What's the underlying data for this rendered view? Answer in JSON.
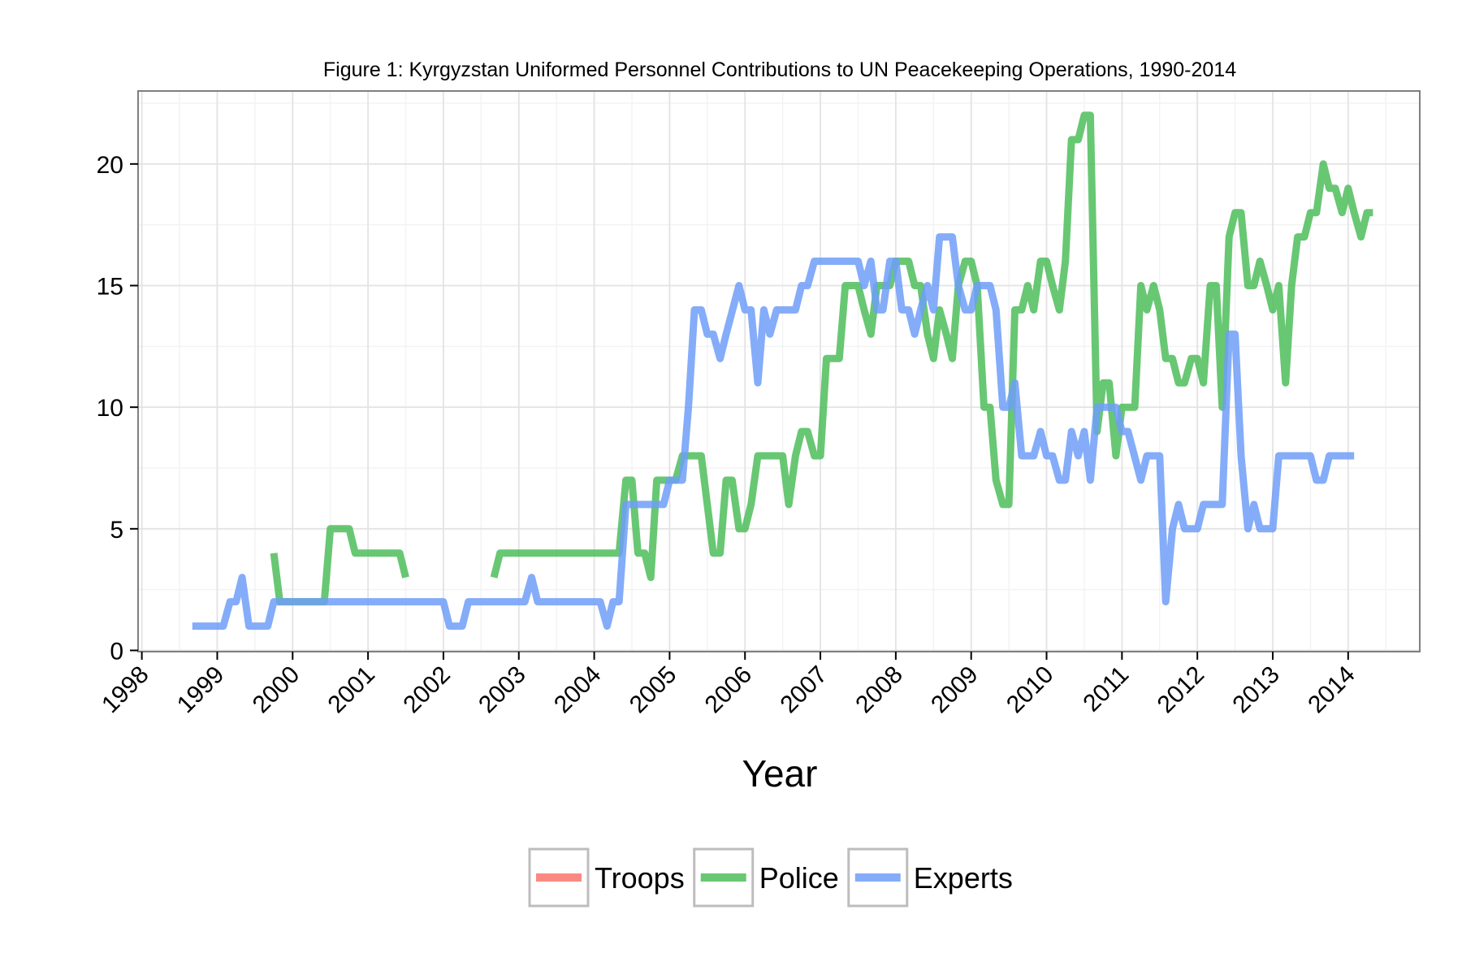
{
  "chart_data": {
    "type": "line",
    "title": "Figure 1: Kyrgyzstan Uniformed Personnel Contributions to UN Peacekeeping Operations, 1990-2014",
    "xlabel": "Year",
    "ylabel": "",
    "xlim": [
      1997.95,
      2014.95
    ],
    "ylim": [
      -0.05,
      23.0
    ],
    "x_ticks": [
      1998,
      1999,
      2000,
      2001,
      2002,
      2003,
      2004,
      2005,
      2006,
      2007,
      2008,
      2009,
      2010,
      2011,
      2012,
      2013,
      2014
    ],
    "x_tick_labels": [
      "1998",
      "1999",
      "2000",
      "2001",
      "2002",
      "2003",
      "2004",
      "2005",
      "2006",
      "2007",
      "2008",
      "2009",
      "2010",
      "2011",
      "2012",
      "2013",
      "2014"
    ],
    "y_ticks": [
      0,
      5,
      10,
      15,
      20
    ],
    "y_tick_labels": [
      "0",
      "5",
      "10",
      "15",
      "20"
    ],
    "grid": true,
    "legend_position": "bottom",
    "series": [
      {
        "name": "Troops",
        "color": "#F8766D",
        "segments": []
      },
      {
        "name": "Police",
        "color": "#4DBD5A",
        "segments": [
          [
            [
              1999.75,
              4
            ],
            [
              1999.83,
              2
            ],
            [
              2000.0,
              2
            ],
            [
              2000.42,
              2
            ],
            [
              2000.5,
              5
            ],
            [
              2000.75,
              5
            ],
            [
              2000.83,
              4
            ],
            [
              2001.42,
              4
            ],
            [
              2001.5,
              3
            ]
          ],
          [
            [
              2002.67,
              3
            ],
            [
              2002.75,
              4
            ],
            [
              2003.0,
              4
            ],
            [
              2004.33,
              4
            ],
            [
              2004.42,
              7
            ],
            [
              2004.5,
              7
            ],
            [
              2004.58,
              4
            ],
            [
              2004.67,
              4
            ],
            [
              2004.75,
              3
            ],
            [
              2004.83,
              7
            ],
            [
              2005.08,
              7
            ],
            [
              2005.17,
              8
            ],
            [
              2005.42,
              8
            ],
            [
              2005.58,
              4
            ],
            [
              2005.67,
              4
            ],
            [
              2005.75,
              7
            ],
            [
              2005.83,
              7
            ],
            [
              2005.92,
              5
            ],
            [
              2006.0,
              5
            ],
            [
              2006.08,
              6
            ],
            [
              2006.17,
              8
            ],
            [
              2006.5,
              8
            ],
            [
              2006.58,
              6
            ],
            [
              2006.67,
              8
            ],
            [
              2006.75,
              9
            ],
            [
              2006.83,
              9
            ],
            [
              2006.92,
              8
            ],
            [
              2007.0,
              8
            ],
            [
              2007.08,
              12
            ],
            [
              2007.25,
              12
            ],
            [
              2007.33,
              15
            ],
            [
              2007.5,
              15
            ],
            [
              2007.58,
              14
            ],
            [
              2007.67,
              13
            ],
            [
              2007.75,
              15
            ],
            [
              2007.92,
              15
            ],
            [
              2008.0,
              16
            ],
            [
              2008.17,
              16
            ],
            [
              2008.25,
              15
            ],
            [
              2008.33,
              15
            ],
            [
              2008.42,
              13
            ],
            [
              2008.5,
              12
            ],
            [
              2008.58,
              14
            ],
            [
              2008.67,
              13
            ],
            [
              2008.75,
              12
            ],
            [
              2008.83,
              15
            ],
            [
              2008.92,
              16
            ],
            [
              2009.0,
              16
            ],
            [
              2009.08,
              15
            ],
            [
              2009.17,
              10
            ],
            [
              2009.25,
              10
            ],
            [
              2009.33,
              7
            ],
            [
              2009.42,
              6
            ],
            [
              2009.5,
              6
            ],
            [
              2009.58,
              14
            ],
            [
              2009.67,
              14
            ],
            [
              2009.75,
              15
            ],
            [
              2009.83,
              14
            ],
            [
              2009.92,
              16
            ],
            [
              2010.0,
              16
            ],
            [
              2010.08,
              15
            ],
            [
              2010.17,
              14
            ],
            [
              2010.25,
              16
            ],
            [
              2010.33,
              21
            ],
            [
              2010.42,
              21
            ],
            [
              2010.5,
              22
            ],
            [
              2010.58,
              22
            ],
            [
              2010.67,
              9
            ],
            [
              2010.75,
              11
            ],
            [
              2010.83,
              11
            ],
            [
              2010.92,
              8
            ],
            [
              2011.0,
              10
            ],
            [
              2011.17,
              10
            ],
            [
              2011.25,
              15
            ],
            [
              2011.33,
              14
            ],
            [
              2011.42,
              15
            ],
            [
              2011.5,
              14
            ],
            [
              2011.58,
              12
            ],
            [
              2011.67,
              12
            ],
            [
              2011.75,
              11
            ],
            [
              2011.83,
              11
            ],
            [
              2011.92,
              12
            ],
            [
              2012.0,
              12
            ],
            [
              2012.08,
              11
            ],
            [
              2012.17,
              15
            ],
            [
              2012.25,
              15
            ],
            [
              2012.33,
              10
            ],
            [
              2012.42,
              17
            ],
            [
              2012.5,
              18
            ],
            [
              2012.58,
              18
            ],
            [
              2012.67,
              15
            ],
            [
              2012.75,
              15
            ],
            [
              2012.83,
              16
            ],
            [
              2012.92,
              15
            ],
            [
              2013.0,
              14
            ],
            [
              2013.08,
              15
            ],
            [
              2013.17,
              11
            ],
            [
              2013.25,
              15
            ],
            [
              2013.33,
              17
            ],
            [
              2013.42,
              17
            ],
            [
              2013.5,
              18
            ],
            [
              2013.58,
              18
            ],
            [
              2013.67,
              20
            ],
            [
              2013.75,
              19
            ],
            [
              2013.83,
              19
            ],
            [
              2013.92,
              18
            ],
            [
              2014.0,
              19
            ],
            [
              2014.08,
              18
            ],
            [
              2014.17,
              17
            ],
            [
              2014.25,
              18
            ],
            [
              2014.33,
              18
            ]
          ]
        ]
      },
      {
        "name": "Experts",
        "color": "#6F9EF8",
        "segments": [
          [
            [
              1998.67,
              1
            ],
            [
              1999.08,
              1
            ],
            [
              1999.17,
              2
            ],
            [
              1999.25,
              2
            ],
            [
              1999.33,
              3
            ],
            [
              1999.42,
              1
            ],
            [
              1999.67,
              1
            ],
            [
              1999.75,
              2
            ],
            [
              2001.92,
              2
            ],
            [
              2002.0,
              2
            ],
            [
              2002.08,
              1
            ],
            [
              2002.25,
              1
            ],
            [
              2002.33,
              2
            ],
            [
              2003.08,
              2
            ],
            [
              2003.17,
              3
            ],
            [
              2003.25,
              2
            ],
            [
              2004.08,
              2
            ],
            [
              2004.17,
              1
            ],
            [
              2004.25,
              2
            ],
            [
              2004.33,
              2
            ],
            [
              2004.42,
              6
            ],
            [
              2004.92,
              6
            ],
            [
              2005.0,
              7
            ],
            [
              2005.17,
              7
            ],
            [
              2005.25,
              10
            ],
            [
              2005.33,
              14
            ],
            [
              2005.42,
              14
            ],
            [
              2005.5,
              13
            ],
            [
              2005.58,
              13
            ],
            [
              2005.67,
              12
            ],
            [
              2005.75,
              13
            ],
            [
              2005.92,
              15
            ],
            [
              2006.0,
              14
            ],
            [
              2006.08,
              14
            ],
            [
              2006.17,
              11
            ],
            [
              2006.25,
              14
            ],
            [
              2006.33,
              13
            ],
            [
              2006.42,
              14
            ],
            [
              2006.67,
              14
            ],
            [
              2006.75,
              15
            ],
            [
              2006.83,
              15
            ],
            [
              2006.92,
              16
            ],
            [
              2007.5,
              16
            ],
            [
              2007.58,
              15
            ],
            [
              2007.67,
              16
            ],
            [
              2007.75,
              14
            ],
            [
              2007.83,
              14
            ],
            [
              2007.92,
              16
            ],
            [
              2008.0,
              16
            ],
            [
              2008.08,
              14
            ],
            [
              2008.17,
              14
            ],
            [
              2008.25,
              13
            ],
            [
              2008.33,
              14
            ],
            [
              2008.42,
              15
            ],
            [
              2008.5,
              14
            ],
            [
              2008.58,
              17
            ],
            [
              2008.75,
              17
            ],
            [
              2008.83,
              15
            ],
            [
              2008.92,
              14
            ],
            [
              2009.0,
              14
            ],
            [
              2009.08,
              15
            ],
            [
              2009.25,
              15
            ],
            [
              2009.33,
              14
            ],
            [
              2009.42,
              10
            ],
            [
              2009.5,
              10
            ],
            [
              2009.58,
              11
            ],
            [
              2009.67,
              8
            ],
            [
              2009.83,
              8
            ],
            [
              2009.92,
              9
            ],
            [
              2010.0,
              8
            ],
            [
              2010.08,
              8
            ],
            [
              2010.17,
              7
            ],
            [
              2010.25,
              7
            ],
            [
              2010.33,
              9
            ],
            [
              2010.42,
              8
            ],
            [
              2010.5,
              9
            ],
            [
              2010.58,
              7
            ],
            [
              2010.67,
              10
            ],
            [
              2010.92,
              10
            ],
            [
              2011.0,
              9
            ],
            [
              2011.08,
              9
            ],
            [
              2011.25,
              7
            ],
            [
              2011.33,
              8
            ],
            [
              2011.5,
              8
            ],
            [
              2011.58,
              2
            ],
            [
              2011.67,
              5
            ],
            [
              2011.75,
              6
            ],
            [
              2011.83,
              5
            ],
            [
              2012.0,
              5
            ],
            [
              2012.08,
              6
            ],
            [
              2012.33,
              6
            ],
            [
              2012.42,
              13
            ],
            [
              2012.5,
              13
            ],
            [
              2012.58,
              8
            ],
            [
              2012.67,
              5
            ],
            [
              2012.75,
              6
            ],
            [
              2012.83,
              5
            ],
            [
              2013.0,
              5
            ],
            [
              2013.08,
              8
            ],
            [
              2013.5,
              8
            ],
            [
              2013.58,
              7
            ],
            [
              2013.67,
              7
            ],
            [
              2013.75,
              8
            ],
            [
              2014.08,
              8
            ]
          ]
        ]
      }
    ]
  }
}
